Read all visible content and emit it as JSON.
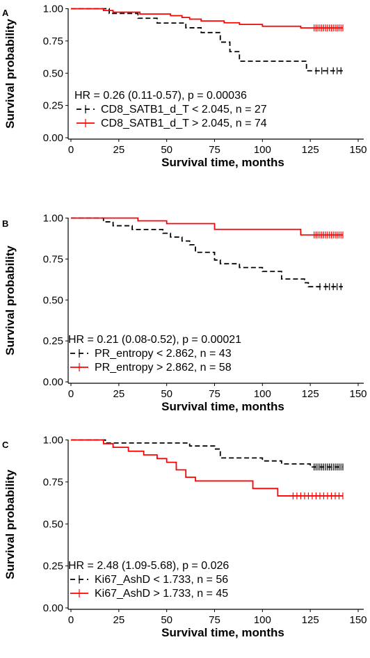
{
  "chart_data": [
    {
      "type": "line",
      "panel_label": "A",
      "xlabel": "Survival time, months",
      "ylabel": "Survival probability",
      "xlim": [
        0,
        150
      ],
      "ylim": [
        0,
        1
      ],
      "xticks": [
        "0",
        "25",
        "50",
        "75",
        "100",
        "125",
        "150"
      ],
      "yticks": [
        "0.00",
        "0.25",
        "0.50",
        "0.75",
        "1.00"
      ],
      "grid": false,
      "annotation": "HR = 0.26 (0.11-0.57), p = 0.00036",
      "legend_position": "bottom-left",
      "series": [
        {
          "name": "CD8_SATB1_d_T < 2.045, n = 27",
          "color": "#000000",
          "dash": true,
          "x": [
            0,
            17,
            20,
            35,
            45,
            60,
            68,
            78,
            83,
            88,
            123
          ],
          "y": [
            1.0,
            1.0,
            0.963,
            0.926,
            0.889,
            0.852,
            0.815,
            0.741,
            0.667,
            0.593,
            0.519
          ],
          "end_x": 142,
          "censors": [
            128,
            131,
            134,
            137,
            139,
            141
          ]
        },
        {
          "name": "CD8_SATB1_d_T > 2.045, n = 74",
          "color": "#ff0000",
          "dash": false,
          "x": [
            0,
            17,
            22,
            36,
            52,
            58,
            62,
            68,
            75,
            80,
            88,
            95,
            100,
            115,
            120
          ],
          "y": [
            1.0,
            0.986,
            0.973,
            0.959,
            0.946,
            0.932,
            0.919,
            0.905,
            0.905,
            0.891,
            0.878,
            0.878,
            0.864,
            0.864,
            0.851
          ],
          "end_x": 142,
          "censors": [
            127,
            128,
            129,
            130,
            131,
            132,
            133,
            134,
            135,
            136,
            137,
            138,
            139,
            140,
            141,
            142
          ]
        }
      ]
    },
    {
      "type": "line",
      "panel_label": "B",
      "xlabel": "Survival time, months",
      "ylabel": "Survival probability",
      "xlim": [
        0,
        150
      ],
      "ylim": [
        0,
        1
      ],
      "xticks": [
        "0",
        "25",
        "50",
        "75",
        "100",
        "125",
        "150"
      ],
      "yticks": [
        "0.00",
        "0.25",
        "0.50",
        "0.75",
        "1.00"
      ],
      "grid": false,
      "annotation": "HR = 0.21 (0.08-0.52), p = 0.00021",
      "legend_position": "bottom-left",
      "series": [
        {
          "name": "PR_entropy < 2.862, n = 43",
          "color": "#000000",
          "dash": true,
          "x": [
            0,
            17,
            22,
            32,
            48,
            52,
            58,
            62,
            65,
            75,
            78,
            88,
            100,
            110,
            122,
            124
          ],
          "y": [
            1.0,
            0.977,
            0.953,
            0.93,
            0.907,
            0.884,
            0.86,
            0.837,
            0.791,
            0.744,
            0.721,
            0.698,
            0.674,
            0.628,
            0.605,
            0.581
          ],
          "end_x": 142,
          "censors": [
            130,
            133,
            135,
            137,
            139,
            141
          ]
        },
        {
          "name": "PR_entropy > 2.862, n = 58",
          "color": "#ff0000",
          "dash": false,
          "x": [
            0,
            35,
            50,
            75,
            120
          ],
          "y": [
            1.0,
            0.983,
            0.966,
            0.931,
            0.897
          ],
          "end_x": 142,
          "censors": [
            127,
            128,
            129,
            130,
            131,
            132,
            133,
            134,
            135,
            136,
            137,
            138,
            139,
            140,
            141,
            142
          ]
        }
      ]
    },
    {
      "type": "line",
      "panel_label": "C",
      "xlabel": "Survival time, months",
      "ylabel": "Survival probability",
      "xlim": [
        0,
        150
      ],
      "ylim": [
        0,
        1
      ],
      "xticks": [
        "0",
        "25",
        "50",
        "75",
        "100",
        "125",
        "150"
      ],
      "yticks": [
        "0.00",
        "0.25",
        "0.50",
        "0.75",
        "1.00"
      ],
      "grid": false,
      "annotation": "HR = 2.48 (1.09-5.68), p = 0.026",
      "legend_position": "bottom-left",
      "series": [
        {
          "name": "Ki67_AshD < 1.733, n = 56",
          "color": "#000000",
          "dash": true,
          "x": [
            0,
            18,
            50,
            62,
            75,
            78,
            100,
            110,
            125
          ],
          "y": [
            1.0,
            0.982,
            0.982,
            0.964,
            0.946,
            0.893,
            0.875,
            0.857,
            0.839
          ],
          "end_x": 142,
          "censors": [
            127,
            128,
            129,
            130,
            131,
            132,
            133,
            134,
            135,
            136,
            137,
            138,
            139,
            140,
            141,
            142
          ]
        },
        {
          "name": "Ki67_AshD > 1.733, n = 45",
          "color": "#ff0000",
          "dash": false,
          "x": [
            0,
            17,
            22,
            30,
            38,
            45,
            50,
            55,
            60,
            65,
            95,
            108
          ],
          "y": [
            1.0,
            0.978,
            0.956,
            0.933,
            0.911,
            0.889,
            0.867,
            0.822,
            0.778,
            0.756,
            0.711,
            0.667
          ],
          "end_x": 142,
          "censors": [
            116,
            118,
            120,
            122,
            124,
            126,
            128,
            130,
            132,
            134,
            136,
            138,
            140,
            142
          ]
        }
      ]
    }
  ]
}
